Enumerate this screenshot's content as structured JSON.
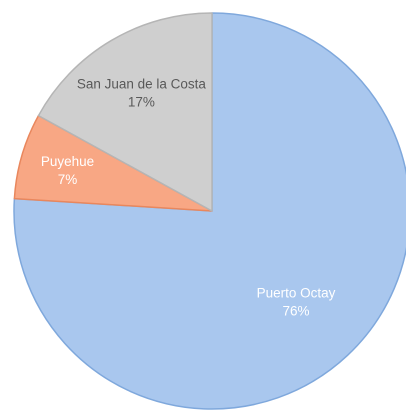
{
  "chart_data": {
    "type": "pie",
    "title": "",
    "legend": "none",
    "start_angle_deg": 0,
    "direction": "clockwise",
    "categories": [
      "Puerto Octay",
      "Puyehue",
      "San Juan de la Costa"
    ],
    "values": [
      76,
      7,
      17
    ],
    "value_labels": [
      "76%",
      "7%",
      "17%"
    ],
    "colors": [
      "#a9c7ee",
      "#f8a784",
      "#cfcfcf"
    ],
    "stroke_colors": [
      "#7fa8dc",
      "#e9875d",
      "#b5b5b5"
    ],
    "label_colors": [
      "#ffffff",
      "#ffffff",
      "#595959"
    ]
  }
}
